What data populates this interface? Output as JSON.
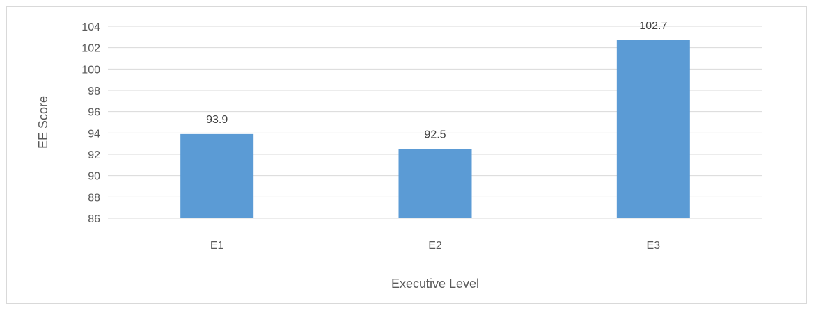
{
  "chart_data": {
    "type": "bar",
    "categories": [
      "E1",
      "E2",
      "E3"
    ],
    "values": [
      93.9,
      92.5,
      102.7
    ],
    "data_labels": [
      "93.9",
      "92.5",
      "102.7"
    ],
    "xlabel": "Executive Level",
    "ylabel": "EE Score",
    "ylim": [
      86,
      104
    ],
    "yticks": [
      86,
      88,
      90,
      92,
      94,
      96,
      98,
      100,
      102,
      104
    ],
    "grid": true,
    "legend": "none",
    "colors": {
      "bar": "#5b9bd5",
      "grid": "#d9d9d9",
      "text": "#595959"
    }
  }
}
